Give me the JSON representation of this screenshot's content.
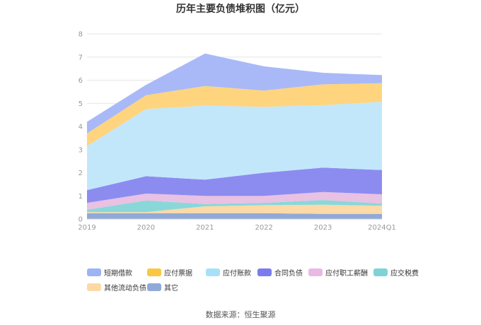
{
  "title": "历年主要负债堆积图（亿元）",
  "source": "数据来源：恒生聚源",
  "chart_data": {
    "type": "area",
    "stacked": true,
    "title": "历年主要负债堆积图（亿元）",
    "x": [
      "2019",
      "2020",
      "2021",
      "2022",
      "2023",
      "2024Q1"
    ],
    "ylim": [
      0,
      8
    ],
    "yticks": [
      "0",
      "1",
      "2",
      "3",
      "4",
      "5",
      "6",
      "7",
      "8"
    ],
    "grid": true,
    "legend_position": "bottom",
    "series": [
      {
        "name": "其它",
        "color": "#8fa9d9",
        "values": [
          0.25,
          0.25,
          0.25,
          0.25,
          0.22,
          0.22
        ]
      },
      {
        "name": "其他流动负债",
        "color": "#fcd9a6",
        "values": [
          0.05,
          0.05,
          0.3,
          0.35,
          0.4,
          0.35
        ]
      },
      {
        "name": "应交税费",
        "color": "#8ad7da",
        "values": [
          0.1,
          0.5,
          0.1,
          0.1,
          0.2,
          0.1
        ]
      },
      {
        "name": "应付职工薪酬",
        "color": "#e8c1e3",
        "values": [
          0.3,
          0.3,
          0.35,
          0.3,
          0.35,
          0.4
        ]
      },
      {
        "name": "合同负债",
        "color": "#8c8cf0",
        "values": [
          0.55,
          0.75,
          0.7,
          1.0,
          1.05,
          1.05
        ]
      },
      {
        "name": "应付账款",
        "color": "#c2e7fb",
        "values": [
          1.9,
          2.9,
          3.2,
          2.85,
          2.7,
          2.95
        ]
      },
      {
        "name": "应付票据",
        "color": "#ffd47e",
        "values": [
          0.55,
          0.6,
          0.85,
          0.7,
          0.9,
          0.8
        ]
      },
      {
        "name": "短期借款",
        "color": "#a9b9f7",
        "values": [
          0.5,
          0.45,
          1.4,
          1.05,
          0.5,
          0.35
        ]
      }
    ],
    "legend": [
      {
        "name": "短期借款",
        "color": "#9cb3f4"
      },
      {
        "name": "应付票据",
        "color": "#fcc740"
      },
      {
        "name": "应付账款",
        "color": "#a8e0fa"
      },
      {
        "name": "合同负债",
        "color": "#7b7bee"
      },
      {
        "name": "应付职工薪酬",
        "color": "#eab8e4"
      },
      {
        "name": "应交税费",
        "color": "#7fd3d6"
      },
      {
        "name": "其他流动负债",
        "color": "#fcd9a6"
      },
      {
        "name": "其它",
        "color": "#8fa9d9"
      }
    ]
  }
}
